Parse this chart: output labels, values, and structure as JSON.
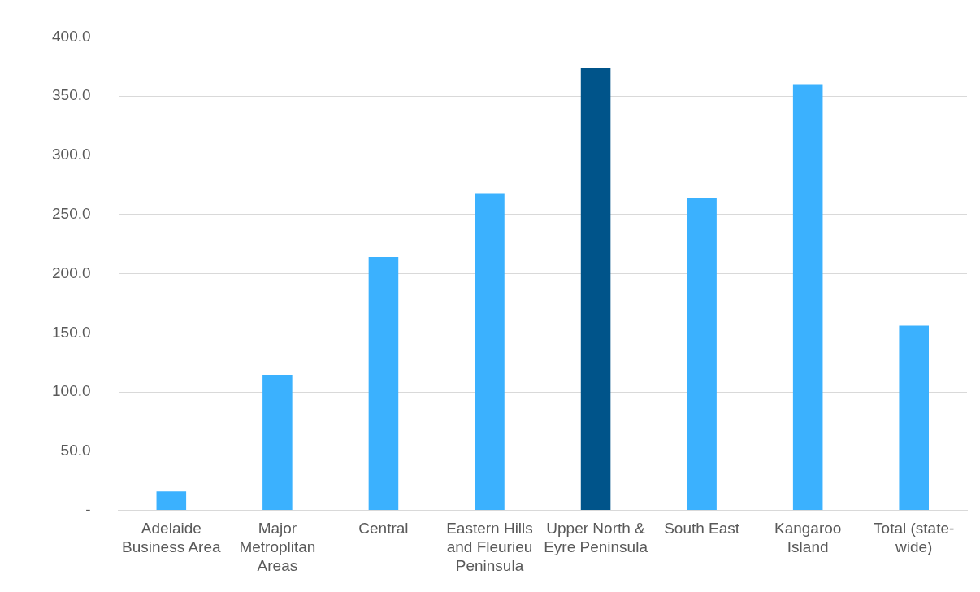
{
  "chart_data": {
    "type": "bar",
    "categories": [
      "Adelaide Business Area",
      "Major Metroplitan Areas",
      "Central",
      "Eastern Hills and Fleurieu Peninsula",
      "Upper North & Eyre Peninsula",
      "South East",
      "Kangaroo Island",
      "Total (state-wide)"
    ],
    "values": [
      16,
      114.5,
      214,
      268,
      373.5,
      264,
      360,
      156
    ],
    "colors": [
      "#3bb1fe",
      "#3bb1fe",
      "#3bb1fe",
      "#3bb1fe",
      "#00548a",
      "#3bb1fe",
      "#3bb1fe",
      "#3bb1fe"
    ],
    "ylim": [
      0,
      400
    ],
    "yticks": [
      {
        "value": 0,
        "label": "-"
      },
      {
        "value": 50,
        "label": "50.0"
      },
      {
        "value": 100,
        "label": "100.0"
      },
      {
        "value": 150,
        "label": "150.0"
      },
      {
        "value": 200,
        "label": "200.0"
      },
      {
        "value": 250,
        "label": "250.0"
      },
      {
        "value": 300,
        "label": "300.0"
      },
      {
        "value": 350,
        "label": "350.0"
      },
      {
        "value": 400,
        "label": "400.0"
      }
    ],
    "grid": "y",
    "legend": false
  }
}
